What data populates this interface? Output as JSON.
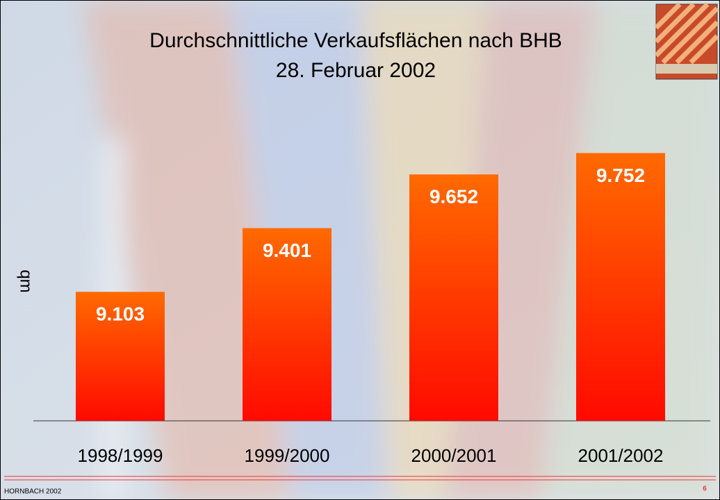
{
  "chart_data": {
    "type": "bar",
    "title": [
      "Durchschnittliche Verkaufsflächen nach BHB",
      "28. Februar 2002"
    ],
    "y_label": "qm",
    "categories": [
      "1998/1999",
      "1999/2000",
      "2000/2001",
      "2001/2002"
    ],
    "values": [
      9103,
      9401,
      9652,
      9752
    ],
    "value_labels": [
      "9.103",
      "9.401",
      "9.652",
      "9.752"
    ],
    "color": "#ff6a00",
    "ylim": [
      8500,
      10000
    ]
  },
  "footer": {
    "left": "HORNBACH 2002",
    "page": "6"
  }
}
